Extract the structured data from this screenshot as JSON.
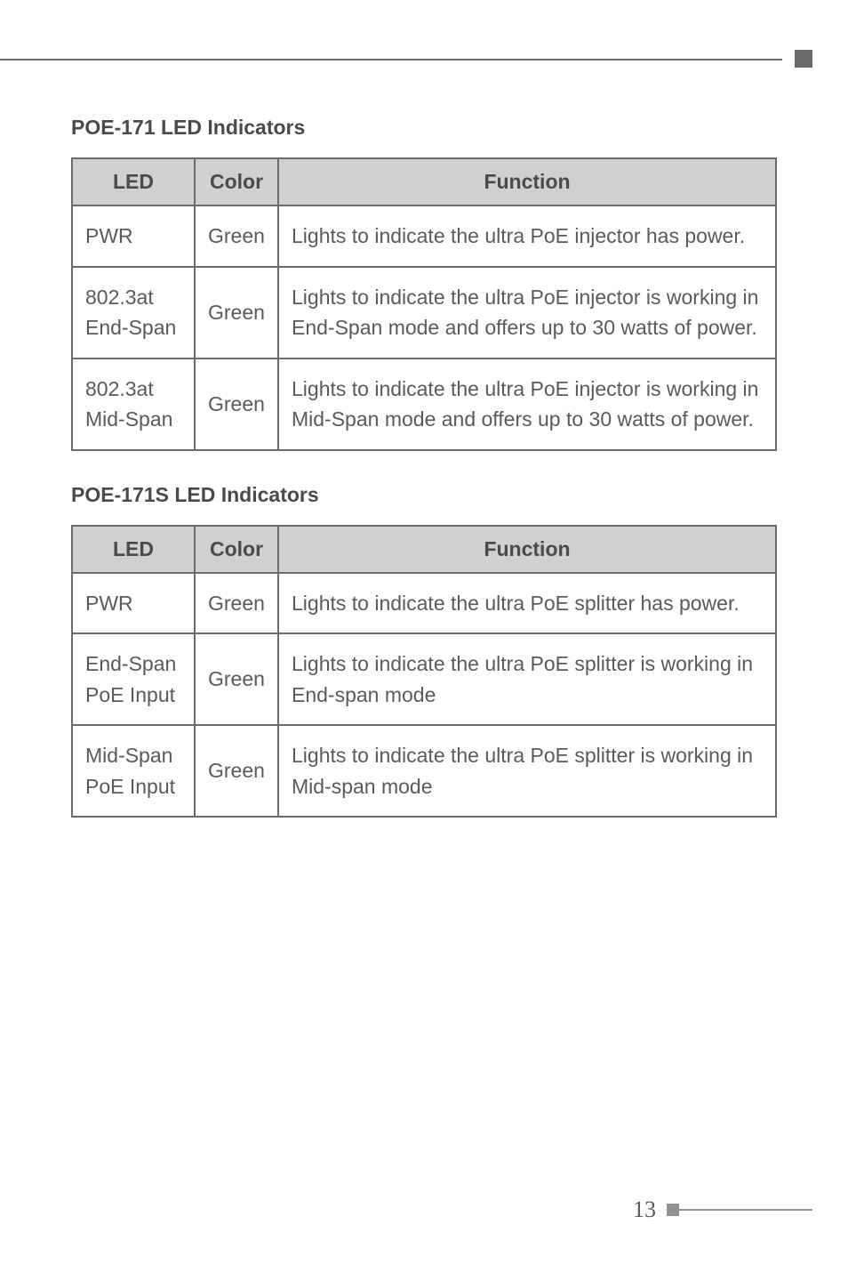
{
  "section1": {
    "heading": "POE-171 LED Indicators",
    "headers": {
      "led": "LED",
      "color": "Color",
      "function": "Function"
    },
    "rows": [
      {
        "led": "PWR",
        "color": "Green",
        "function": "Lights to indicate the ultra PoE injector has power."
      },
      {
        "led": "802.3at End-Span",
        "color": "Green",
        "function": "Lights to indicate the ultra PoE injector is working in End-Span mode and offers up to 30 watts of power."
      },
      {
        "led": "802.3at Mid-Span",
        "color": "Green",
        "function": "Lights to indicate the ultra PoE injector is working in Mid-Span mode and offers up to 30 watts of power."
      }
    ]
  },
  "section2": {
    "heading": "POE-171S LED Indicators",
    "headers": {
      "led": "LED",
      "color": "Color",
      "function": "Function"
    },
    "rows": [
      {
        "led": "PWR",
        "color": "Green",
        "function": "Lights to indicate the ultra PoE splitter has power."
      },
      {
        "led": "End-Span PoE Input",
        "color": "Green",
        "function": "Lights to indicate the ultra PoE splitter is working in End-span mode"
      },
      {
        "led": "Mid-Span PoE Input",
        "color": "Green",
        "function": "Lights to indicate the ultra PoE splitter is working in Mid-span mode"
      }
    ]
  },
  "page_number": "13",
  "colors": {
    "text": "#5a5a5a",
    "heading": "#4a4a4a",
    "border": "#6b6b6b",
    "header_bg": "#d0d0d0",
    "footer_accent": "#929292",
    "background": "#ffffff"
  }
}
